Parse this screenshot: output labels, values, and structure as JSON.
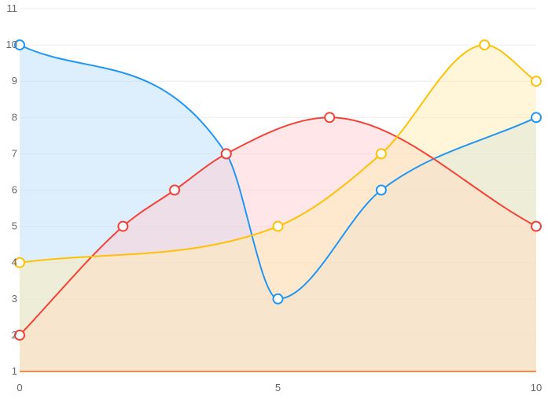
{
  "chart_data": {
    "type": "area",
    "x_ticks": [
      "0",
      "5",
      "10"
    ],
    "y_ticks": [
      "1",
      "2",
      "3",
      "4",
      "5",
      "6",
      "7",
      "8",
      "9",
      "10",
      "11"
    ],
    "xlim": [
      0,
      10
    ],
    "ylim": [
      1,
      11
    ],
    "grid": true,
    "curve": "smooth",
    "series": [
      {
        "color": "#FF8A45",
        "fill": "#D5B896",
        "x": [
          0,
          10
        ],
        "y": [
          1,
          1
        ]
      },
      {
        "color": "#2196F3",
        "fill": "#BBDEFB",
        "x": [
          0,
          4,
          5,
          7,
          10
        ],
        "y": [
          10,
          7,
          3,
          6,
          8
        ]
      },
      {
        "color": "#F44336",
        "fill": "#FFCDD2",
        "x": [
          0,
          2,
          3,
          4,
          6,
          10
        ],
        "y": [
          2,
          5,
          6,
          7,
          8,
          5
        ]
      },
      {
        "color": "#FFC107",
        "fill": "#FFECB3",
        "x": [
          0,
          5,
          7,
          9,
          10
        ],
        "y": [
          4,
          5,
          7,
          10,
          9
        ]
      }
    ]
  }
}
